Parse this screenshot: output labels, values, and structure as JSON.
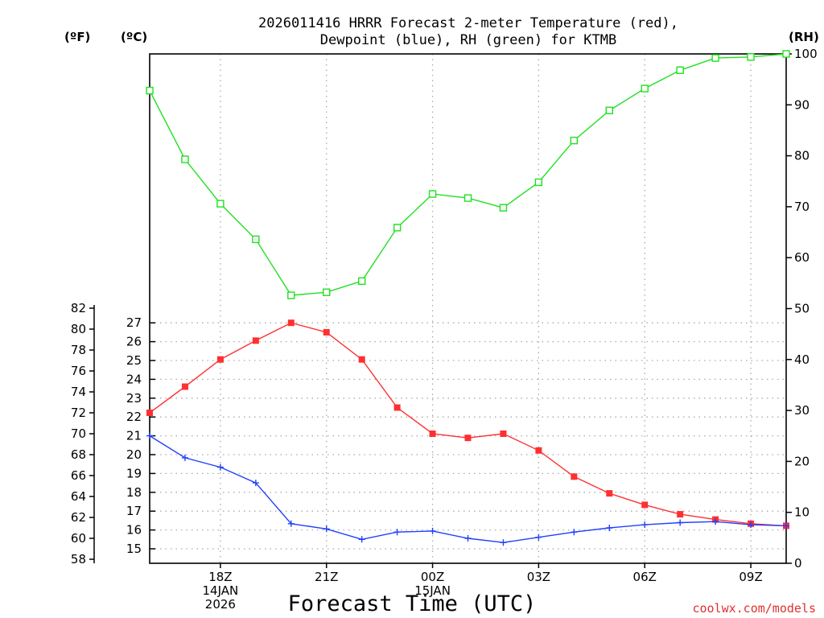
{
  "chart_data": {
    "type": "line",
    "title_line1": "2026011416 HRRR Forecast 2-meter Temperature (red),",
    "title_line2": "Dewpoint (blue), RH (green) for KTMB",
    "xlabel": "Forecast Time (UTC)",
    "credit": "coolwx.com/models",
    "axis_units": {
      "fahrenheit": "(ºF)",
      "celsius": "(ºC)",
      "rh": "(RH)"
    },
    "x_hours": [
      16,
      17,
      18,
      19,
      20,
      21,
      22,
      23,
      24,
      25,
      26,
      27,
      28,
      29,
      30,
      31,
      32,
      33,
      34
    ],
    "x_ticks": [
      {
        "hour": 18,
        "lines": [
          "18Z",
          "14JAN",
          "2026"
        ]
      },
      {
        "hour": 21,
        "lines": [
          "21Z"
        ]
      },
      {
        "hour": 24,
        "lines": [
          "00Z",
          "15JAN"
        ]
      },
      {
        "hour": 27,
        "lines": [
          "03Z"
        ]
      },
      {
        "hour": 30,
        "lines": [
          "06Z"
        ]
      },
      {
        "hour": 33,
        "lines": [
          "09Z"
        ]
      }
    ],
    "fahrenheit_axis": {
      "min": 58,
      "max": 82,
      "ticks": [
        "58",
        "60",
        "62",
        "64",
        "66",
        "68",
        "70",
        "72",
        "74",
        "76",
        "78",
        "80",
        "82"
      ]
    },
    "celsius_axis": {
      "ticks": [
        "15",
        "16",
        "17",
        "18",
        "19",
        "20",
        "21",
        "22",
        "23",
        "24",
        "25",
        "26",
        "27"
      ]
    },
    "rh_axis": {
      "min": 0,
      "max": 100,
      "ticks": [
        "0",
        "10",
        "20",
        "30",
        "40",
        "50",
        "60",
        "70",
        "80",
        "90",
        "100"
      ]
    },
    "series": [
      {
        "name": "Temperature",
        "units": "F",
        "color": "#ff3030",
        "marker": "filled-square",
        "values": [
          72.0,
          74.5,
          77.1,
          78.9,
          80.6,
          79.7,
          77.1,
          72.5,
          70.0,
          69.6,
          70.0,
          68.4,
          65.9,
          64.3,
          63.2,
          62.3,
          61.8,
          61.4,
          61.2
        ]
      },
      {
        "name": "Dewpoint",
        "units": "F",
        "color": "#2040ff",
        "marker": "plus",
        "values": [
          69.8,
          67.7,
          66.8,
          65.3,
          61.4,
          60.9,
          59.9,
          60.6,
          60.7,
          60.0,
          59.6,
          60.1,
          60.6,
          61.0,
          61.3,
          61.5,
          61.6,
          61.3,
          61.2
        ]
      },
      {
        "name": "RH",
        "units": "%",
        "color": "#20e020",
        "marker": "open-square",
        "values": [
          92.8,
          79.3,
          70.6,
          63.6,
          52.6,
          53.2,
          55.4,
          65.9,
          72.5,
          71.7,
          69.8,
          74.8,
          83.0,
          88.9,
          93.2,
          96.8,
          99.2,
          99.4,
          100
        ]
      }
    ]
  }
}
